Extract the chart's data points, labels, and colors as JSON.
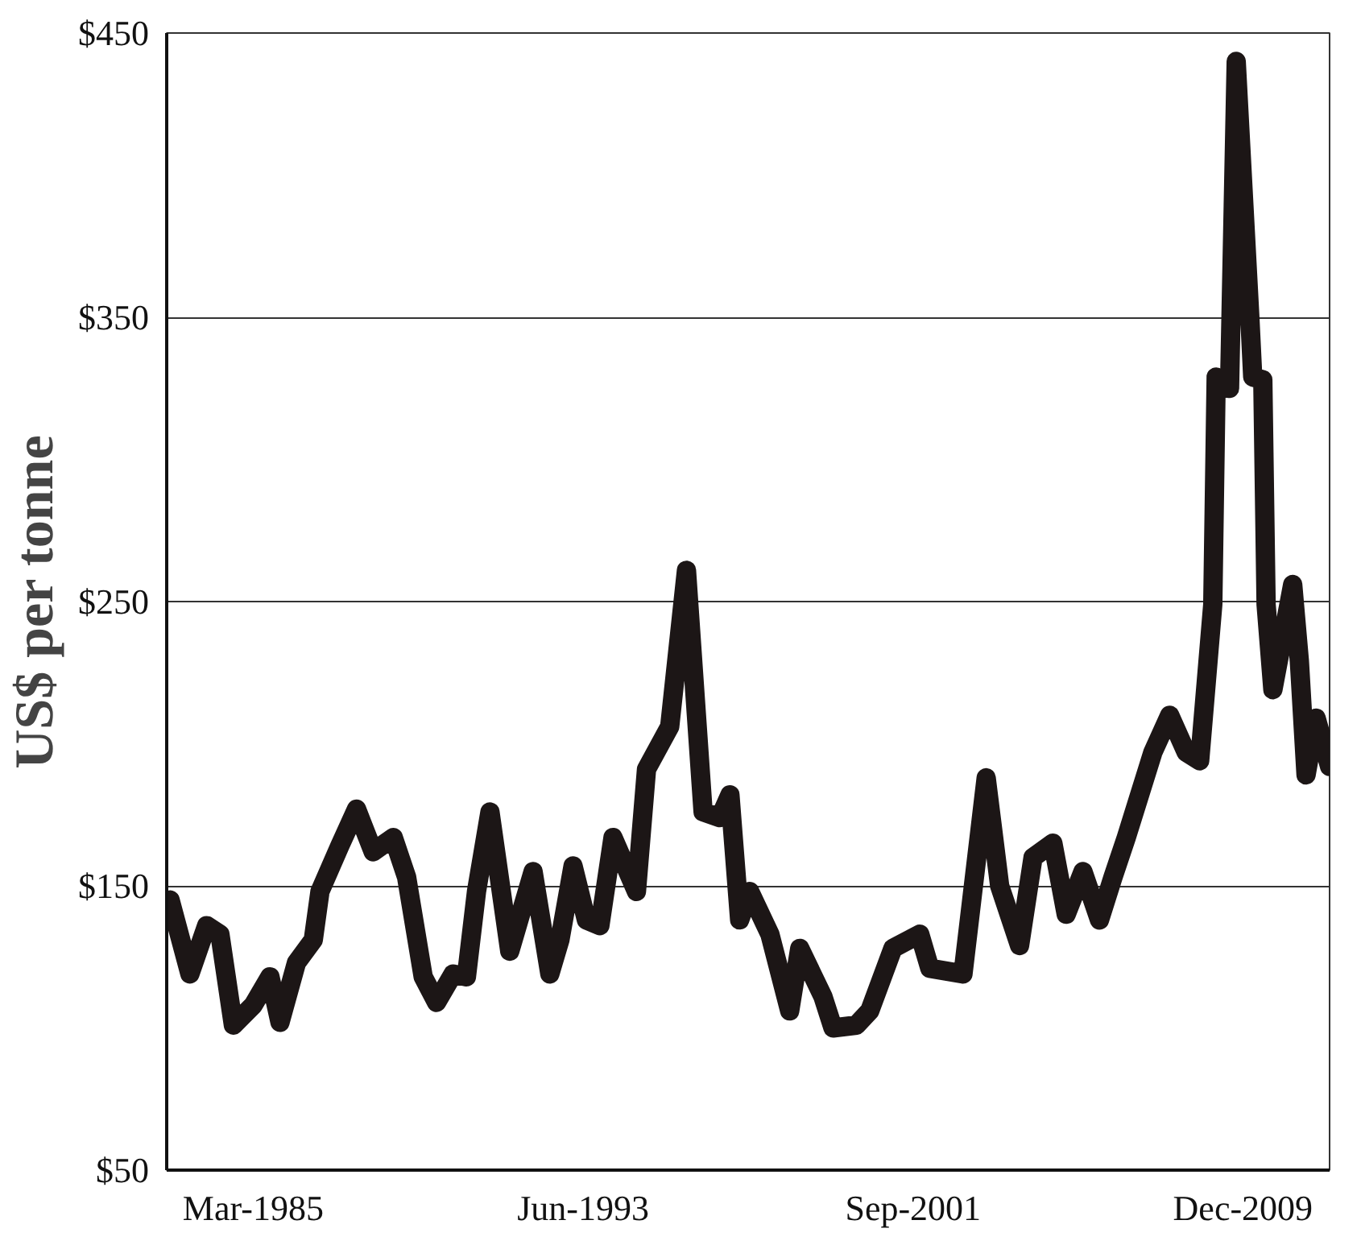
{
  "chart_data": {
    "type": "line",
    "ylabel": "US$ per tonne",
    "x": [
      "1983-02",
      "1983-08",
      "1984-01",
      "1984-05",
      "1984-09",
      "1985-03",
      "1985-08",
      "1985-11",
      "1986-04",
      "1986-09",
      "1986-11",
      "1987-05",
      "1987-10",
      "1988-03",
      "1988-09",
      "1989-01",
      "1989-06",
      "1989-10",
      "1990-03",
      "1990-07",
      "1990-10",
      "1991-02",
      "1991-08",
      "1992-03",
      "1992-08",
      "1992-11",
      "1993-03",
      "1993-07",
      "1993-11",
      "1994-03",
      "1994-10",
      "1995-01",
      "1995-08",
      "1996-01",
      "1996-04",
      "1996-06",
      "1996-11",
      "1997-02",
      "1997-05",
      "1997-08",
      "1998-02",
      "1998-08",
      "1998-11",
      "1999-06",
      "1999-09",
      "2000-04",
      "2000-08",
      "2001-03",
      "2001-11",
      "2002-02",
      "2002-12",
      "2003-07",
      "2003-11",
      "2004-05",
      "2004-09",
      "2005-03",
      "2005-07",
      "2005-12",
      "2006-05",
      "2006-09",
      "2007-01",
      "2007-09",
      "2008-02",
      "2008-07",
      "2008-11",
      "2009-03",
      "2009-04",
      "2009-08",
      "2009-10",
      "2010-02",
      "2010-03",
      "2010-06",
      "2010-07",
      "2010-09",
      "2011-03",
      "2011-05",
      "2011-07",
      "2011-10",
      "2012-02"
    ],
    "series": [
      {
        "color": "#1c1616",
        "values": [
          145,
          119,
          136,
          133,
          101,
          108,
          118,
          102,
          123,
          131,
          148,
          164,
          177,
          162,
          167,
          153,
          118,
          109,
          119,
          118,
          148,
          176,
          127,
          155,
          119,
          131,
          157,
          138,
          136,
          167,
          148,
          191,
          206,
          261,
          210,
          176,
          174,
          182,
          138,
          148,
          133,
          106,
          128,
          111,
          100,
          101,
          106,
          128,
          133,
          121,
          119,
          188,
          150,
          129,
          160,
          165,
          140,
          155,
          138,
          153,
          167,
          197,
          210,
          197,
          194,
          249,
          329,
          325,
          440,
          351,
          329,
          328,
          249,
          219,
          256,
          229,
          189,
          209,
          192
        ]
      }
    ],
    "xlim": [
      "1983-01",
      "2012-02"
    ],
    "xticks": [
      {
        "value": "1985-03",
        "label": "Mar-1985"
      },
      {
        "value": "1993-06",
        "label": "Jun-1993"
      },
      {
        "value": "2001-09",
        "label": "Sep-2001"
      },
      {
        "value": "2009-12",
        "label": "Dec-2009"
      }
    ],
    "ylim": [
      50,
      450
    ],
    "yticks": [
      {
        "value": 50,
        "label": "$50"
      },
      {
        "value": 150,
        "label": "$150"
      },
      {
        "value": 250,
        "label": "$250"
      },
      {
        "value": 350,
        "label": "$350"
      },
      {
        "value": 450,
        "label": "$450"
      }
    ],
    "grid": "y",
    "line_style": "solid"
  }
}
